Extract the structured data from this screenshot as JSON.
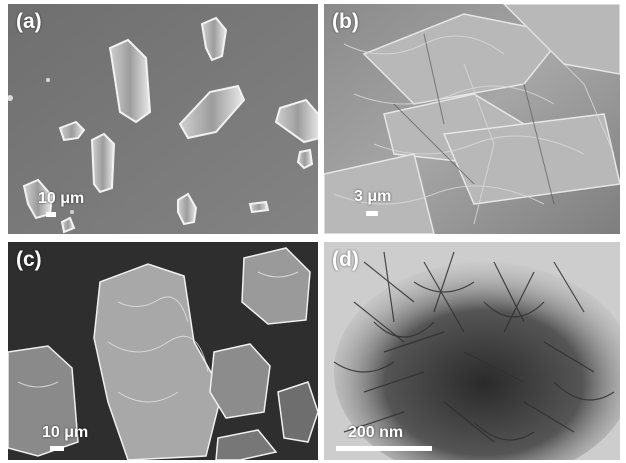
{
  "panels": [
    {
      "label": "(a)",
      "scale_text": "10 μm"
    },
    {
      "label": "(b)",
      "scale_text": "3 μm"
    },
    {
      "label": "(c)",
      "scale_text": "10 μm"
    },
    {
      "label": "(d)",
      "scale_text": "200 nm"
    }
  ],
  "colors": {
    "sem_background_a": "#7a7a7a",
    "sem_background_b": "#9a9a9a",
    "sem_background_c": "#3a3a3a",
    "tem_background_d": "#cfcfcf",
    "annotation": "#ffffff"
  }
}
